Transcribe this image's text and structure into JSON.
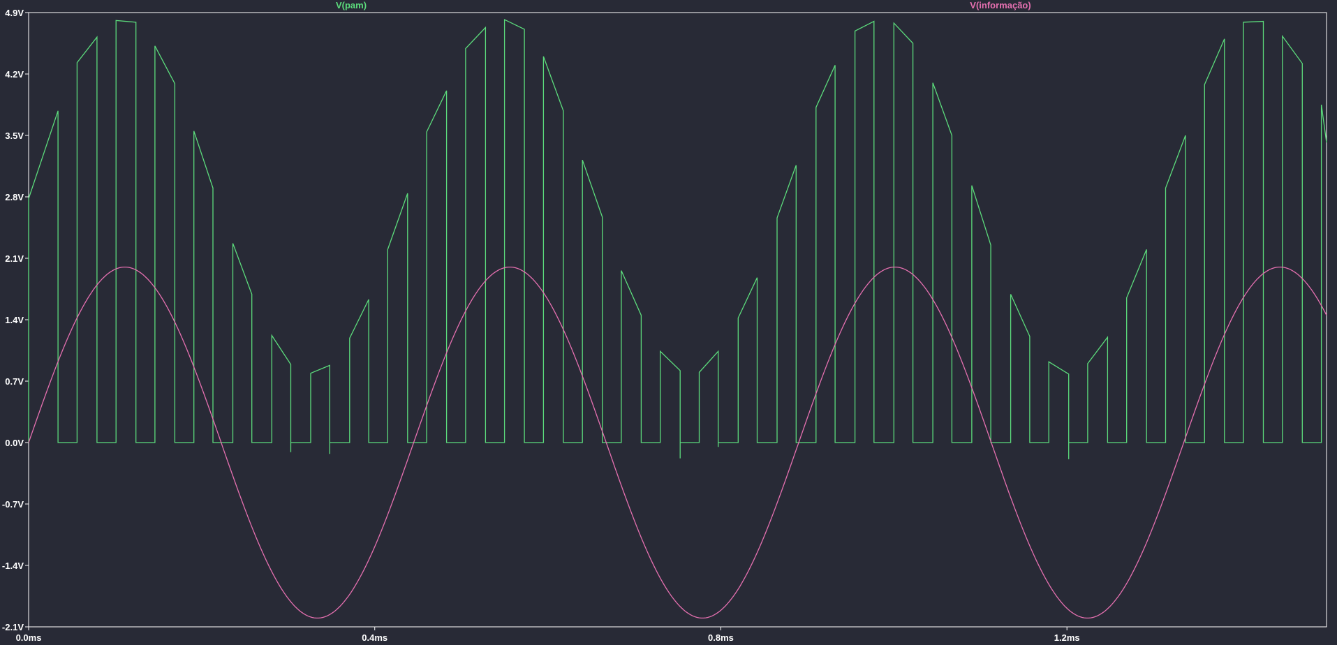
{
  "chart_data": {
    "type": "line",
    "background": "#282a36",
    "frame_color": "#ffffff",
    "grid": false,
    "x_unit": "ms",
    "xlim": [
      0.0,
      1.5
    ],
    "ylim": [
      -2.1,
      4.9
    ],
    "x_ticks": [
      {
        "value": 0.0,
        "label": "0.0ms"
      },
      {
        "value": 0.4,
        "label": "0.4ms"
      },
      {
        "value": 0.8,
        "label": "0.8ms"
      },
      {
        "value": 1.2,
        "label": "1.2ms"
      }
    ],
    "y_ticks": [
      {
        "value": 4.9,
        "label": "4.9V"
      },
      {
        "value": 4.2,
        "label": "4.2V"
      },
      {
        "value": 3.5,
        "label": "3.5V"
      },
      {
        "value": 2.8,
        "label": "2.8V"
      },
      {
        "value": 2.1,
        "label": "2.1V"
      },
      {
        "value": 1.4,
        "label": "1.4V"
      },
      {
        "value": 0.7,
        "label": "0.7V"
      },
      {
        "value": 0.0,
        "label": "0.0V"
      },
      {
        "value": -0.7,
        "label": "-0.7V"
      },
      {
        "value": -1.4,
        "label": "-1.4V"
      },
      {
        "value": -2.1,
        "label": "-2.1V"
      }
    ],
    "series": [
      {
        "name": "V(pam)",
        "color": "#5cdc7c",
        "points": [
          [
            0.0,
            0.0
          ],
          [
            0.0,
            2.78
          ],
          [
            0.034,
            3.78
          ],
          [
            0.034,
            0.0
          ],
          [
            0.056,
            0.0
          ],
          [
            0.056,
            4.33
          ],
          [
            0.079,
            4.62
          ],
          [
            0.079,
            0.0
          ],
          [
            0.101,
            0.0
          ],
          [
            0.101,
            4.81
          ],
          [
            0.124,
            4.79
          ],
          [
            0.124,
            0.0
          ],
          [
            0.146,
            0.0
          ],
          [
            0.146,
            4.52
          ],
          [
            0.169,
            4.09
          ],
          [
            0.169,
            0.0
          ],
          [
            0.191,
            0.0
          ],
          [
            0.191,
            3.55
          ],
          [
            0.213,
            2.9
          ],
          [
            0.213,
            0.0
          ],
          [
            0.236,
            0.0
          ],
          [
            0.236,
            2.27
          ],
          [
            0.258,
            1.69
          ],
          [
            0.258,
            0.0
          ],
          [
            0.281,
            0.0
          ],
          [
            0.281,
            1.22
          ],
          [
            0.303,
            0.89
          ],
          [
            0.303,
            -0.11
          ],
          [
            0.303,
            0.0
          ],
          [
            0.326,
            0.0
          ],
          [
            0.326,
            0.79
          ],
          [
            0.348,
            0.88
          ],
          [
            0.348,
            -0.13
          ],
          [
            0.348,
            0.0
          ],
          [
            0.371,
            0.0
          ],
          [
            0.371,
            1.19
          ],
          [
            0.393,
            1.63
          ],
          [
            0.393,
            0.0
          ],
          [
            0.415,
            0.0
          ],
          [
            0.415,
            2.2
          ],
          [
            0.438,
            2.84
          ],
          [
            0.438,
            0.0
          ],
          [
            0.46,
            0.0
          ],
          [
            0.46,
            3.54
          ],
          [
            0.483,
            4.01
          ],
          [
            0.483,
            0.0
          ],
          [
            0.505,
            0.0
          ],
          [
            0.505,
            4.49
          ],
          [
            0.528,
            4.73
          ],
          [
            0.528,
            0.0
          ],
          [
            0.55,
            0.0
          ],
          [
            0.55,
            4.82
          ],
          [
            0.573,
            4.71
          ],
          [
            0.573,
            0.0
          ],
          [
            0.595,
            0.0
          ],
          [
            0.595,
            4.4
          ],
          [
            0.618,
            3.78
          ],
          [
            0.618,
            0.0
          ],
          [
            0.64,
            0.0
          ],
          [
            0.64,
            3.22
          ],
          [
            0.663,
            2.57
          ],
          [
            0.663,
            0.0
          ],
          [
            0.685,
            0.0
          ],
          [
            0.685,
            1.96
          ],
          [
            0.708,
            1.45
          ],
          [
            0.708,
            0.0
          ],
          [
            0.73,
            0.0
          ],
          [
            0.73,
            1.04
          ],
          [
            0.753,
            0.82
          ],
          [
            0.753,
            -0.18
          ],
          [
            0.753,
            0.0
          ],
          [
            0.775,
            0.0
          ],
          [
            0.775,
            0.8
          ],
          [
            0.797,
            1.04
          ],
          [
            0.797,
            -0.05
          ],
          [
            0.797,
            0.0
          ],
          [
            0.82,
            0.0
          ],
          [
            0.82,
            1.42
          ],
          [
            0.842,
            1.88
          ],
          [
            0.842,
            0.0
          ],
          [
            0.865,
            0.0
          ],
          [
            0.865,
            2.56
          ],
          [
            0.887,
            3.16
          ],
          [
            0.887,
            0.0
          ],
          [
            0.91,
            0.0
          ],
          [
            0.91,
            3.82
          ],
          [
            0.932,
            4.3
          ],
          [
            0.932,
            0.0
          ],
          [
            0.955,
            0.0
          ],
          [
            0.955,
            4.69
          ],
          [
            0.977,
            4.8
          ],
          [
            0.977,
            0.0
          ],
          [
            1.0,
            0.0
          ],
          [
            1.0,
            4.78
          ],
          [
            1.022,
            4.55
          ],
          [
            1.022,
            0.0
          ],
          [
            1.045,
            0.0
          ],
          [
            1.045,
            4.1
          ],
          [
            1.067,
            3.5
          ],
          [
            1.067,
            0.0
          ],
          [
            1.09,
            0.0
          ],
          [
            1.09,
            2.93
          ],
          [
            1.112,
            2.25
          ],
          [
            1.112,
            0.0
          ],
          [
            1.135,
            0.0
          ],
          [
            1.135,
            1.69
          ],
          [
            1.157,
            1.21
          ],
          [
            1.157,
            0.0
          ],
          [
            1.179,
            0.0
          ],
          [
            1.179,
            0.92
          ],
          [
            1.202,
            0.78
          ],
          [
            1.202,
            -0.19
          ],
          [
            1.202,
            0.0
          ],
          [
            1.224,
            0.0
          ],
          [
            1.224,
            0.9
          ],
          [
            1.247,
            1.2
          ],
          [
            1.247,
            0.0
          ],
          [
            1.269,
            0.0
          ],
          [
            1.269,
            1.65
          ],
          [
            1.292,
            2.2
          ],
          [
            1.292,
            0.0
          ],
          [
            1.314,
            0.0
          ],
          [
            1.314,
            2.9
          ],
          [
            1.337,
            3.5
          ],
          [
            1.337,
            0.0
          ],
          [
            1.359,
            0.0
          ],
          [
            1.359,
            4.08
          ],
          [
            1.382,
            4.6
          ],
          [
            1.382,
            0.0
          ],
          [
            1.404,
            0.0
          ],
          [
            1.404,
            4.79
          ],
          [
            1.427,
            4.8
          ],
          [
            1.427,
            0.0
          ],
          [
            1.449,
            0.0
          ],
          [
            1.449,
            4.63
          ],
          [
            1.472,
            4.32
          ],
          [
            1.472,
            0.0
          ],
          [
            1.494,
            0.0
          ],
          [
            1.494,
            3.85
          ],
          [
            1.5,
            3.42
          ]
        ]
      },
      {
        "name": "V(informação)",
        "color": "#e570b0",
        "shape": "sine",
        "amplitude": 2.0,
        "period_ms": 0.445,
        "phase_ms": 0.0,
        "offset": 0.0
      }
    ]
  }
}
